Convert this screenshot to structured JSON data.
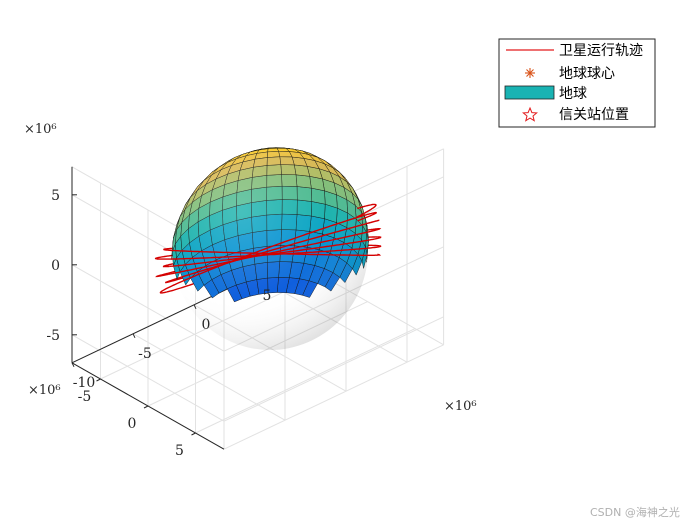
{
  "chart_data": {
    "type": "3d-surface-with-trajectory",
    "title": "",
    "axes": {
      "x": {
        "exponent_label": "×10⁶",
        "ticks": [
          -10,
          -5,
          0,
          5
        ],
        "range": [
          -10,
          8
        ]
      },
      "y": {
        "exponent_label": "×10⁶",
        "ticks": [
          -5,
          0,
          5
        ],
        "range": [
          -8,
          8
        ]
      },
      "z": {
        "exponent_label": "×10⁶",
        "ticks": [
          -5,
          0,
          5
        ],
        "range": [
          -7,
          7
        ]
      }
    },
    "grid": true,
    "legend": {
      "placement": "top-right",
      "entries": [
        {
          "label": "卫星运行轨迹",
          "style": "line",
          "color": "#e31a1c"
        },
        {
          "label": "地球球心",
          "style": "asterisk",
          "color": "#d95319"
        },
        {
          "label": "地球",
          "style": "patch",
          "color": "#19b3b3"
        },
        {
          "label": "信关站位置",
          "style": "pentagram",
          "color": "#e31a1c"
        }
      ]
    },
    "series": [
      {
        "name": "卫星运行轨迹",
        "kind": "orbit",
        "color": "#d40000",
        "orbit_radius_range": [
          6.9,
          7.4
        ],
        "revolutions": 6
      },
      {
        "name": "地球",
        "kind": "sphere",
        "radius": 6.371,
        "colormap": "parula"
      },
      {
        "name": "地球球心",
        "kind": "point",
        "x": 0,
        "y": 0,
        "z": 0
      }
    ]
  },
  "watermark": "CSDN @海神之光"
}
